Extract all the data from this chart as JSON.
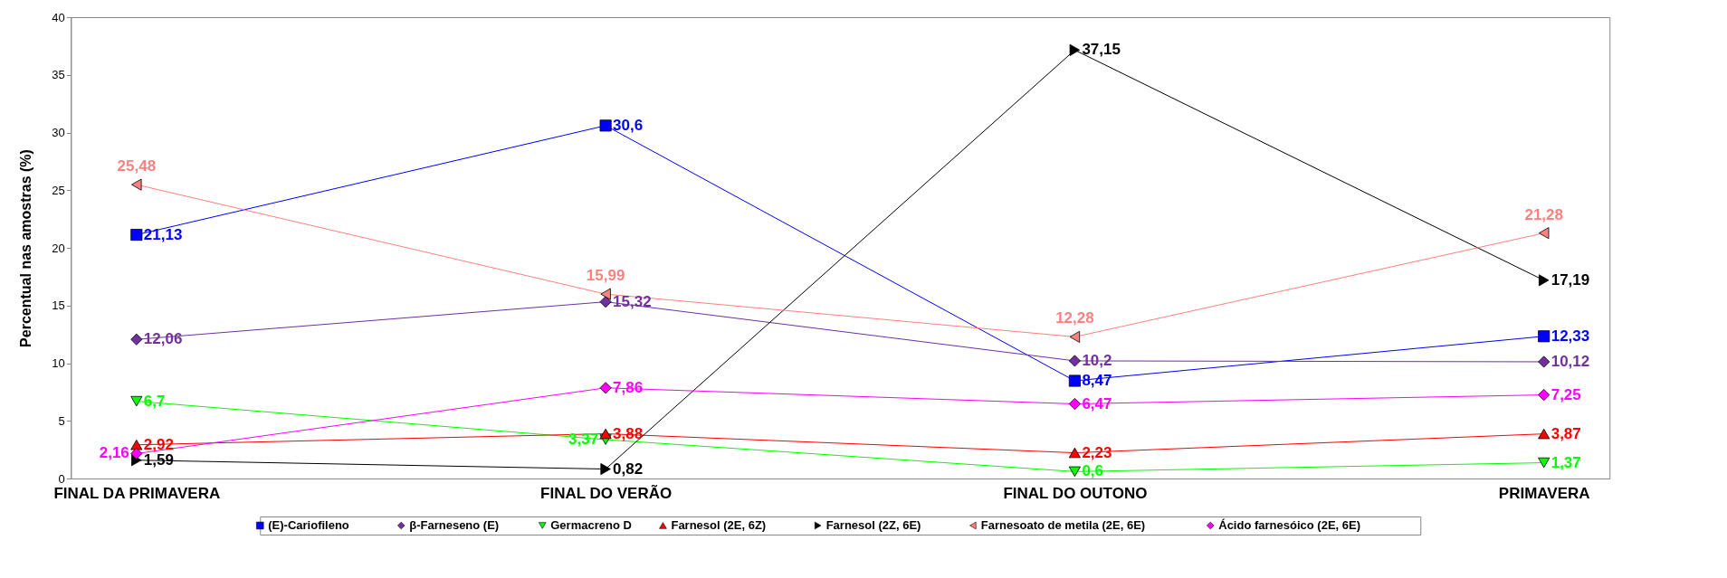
{
  "chart_data": {
    "type": "line",
    "ylabel": "Percentual nas amostras (%)",
    "categories": [
      "FINAL DA PRIMAVERA",
      "FINAL DO VERÃO",
      "FINAL DO OUTONO",
      "PRIMAVERA"
    ],
    "ylim": [
      0,
      40
    ],
    "yticks": [
      0,
      5,
      10,
      15,
      20,
      25,
      30,
      35,
      40
    ],
    "grid": false,
    "legend": "bottom",
    "line_style": "solid",
    "series": [
      {
        "name": "(E)-Cariofileno",
        "color": "#0000ff",
        "marker": "square",
        "values": [
          21.13,
          30.6,
          8.47,
          12.33
        ],
        "value_labels": [
          "21,13",
          "30,6",
          "8,47",
          "12,33"
        ]
      },
      {
        "name": "β-Farneseno (E)",
        "color": "#7030a0",
        "marker": "diamond",
        "values": [
          12.06,
          15.32,
          10.2,
          10.12
        ],
        "value_labels": [
          "12,06",
          "15,32",
          "10,2",
          "10,12"
        ]
      },
      {
        "name": "Germacreno D",
        "color": "#00ff00",
        "marker": "triangle-down",
        "values": [
          6.7,
          3.37,
          0.6,
          1.37
        ],
        "value_labels": [
          "6,7",
          "3,37",
          "0,6",
          "1,37"
        ]
      },
      {
        "name": "Farnesol (2E, 6Z)",
        "color": "#ff0000",
        "marker": "triangle",
        "values": [
          2.92,
          3.88,
          2.23,
          3.87
        ],
        "value_labels": [
          "2,92",
          "3,88",
          "2,23",
          "3,87"
        ]
      },
      {
        "name": "Farnesol (2Z, 6E)",
        "color": "#000000",
        "marker": "triangle-right",
        "values": [
          1.59,
          0.82,
          37.15,
          17.19
        ],
        "value_labels": [
          "1,59",
          "0,82",
          "37,15",
          "17,19"
        ]
      },
      {
        "name": "Farnesoato de metila (2E, 6E)",
        "color": "#ff8080",
        "marker": "triangle-left",
        "values": [
          25.48,
          15.99,
          12.28,
          21.28
        ],
        "value_labels": [
          "25,48",
          "15,99",
          "12,28",
          "21,28"
        ]
      },
      {
        "name": "Ácido farnesóico (2E, 6E)",
        "color": "#ff00ff",
        "marker": "diamond",
        "values": [
          2.16,
          7.86,
          6.47,
          7.25
        ],
        "value_labels": [
          "2,16",
          "7,86",
          "6,47",
          "7,25"
        ]
      }
    ]
  }
}
